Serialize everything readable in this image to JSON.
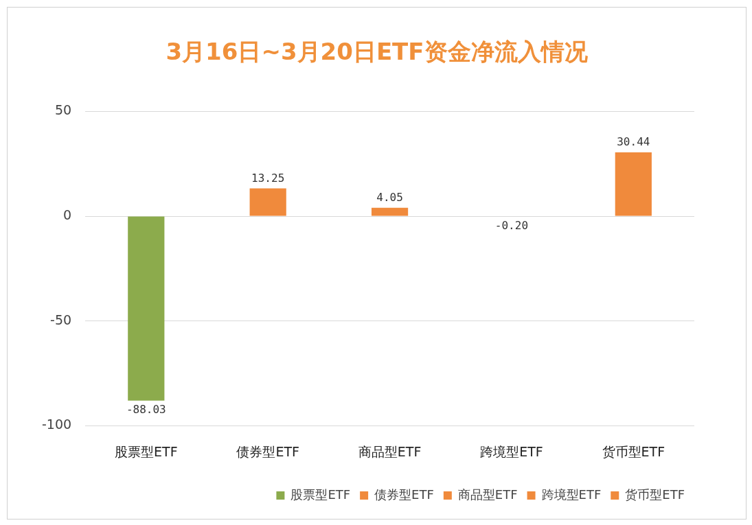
{
  "chart_data": {
    "type": "bar",
    "title": "3月16日~3月20日ETF资金净流入情况",
    "categories": [
      "股票型ETF",
      "债券型ETF",
      "商品型ETF",
      "跨境型ETF",
      "货币型ETF"
    ],
    "series": [
      {
        "name": "股票型ETF",
        "color": "#8cab4c",
        "values": [
          -88.03,
          null,
          null,
          null,
          null
        ],
        "value_labels": [
          "-88.03",
          null,
          null,
          null,
          null
        ]
      },
      {
        "name": "债券型ETF",
        "color": "#f08a3c",
        "values": [
          null,
          13.25,
          null,
          null,
          null
        ],
        "value_labels": [
          null,
          "13.25",
          null,
          null,
          null
        ]
      },
      {
        "name": "商品型ETF",
        "color": "#f08a3c",
        "values": [
          null,
          null,
          4.05,
          null,
          null
        ],
        "value_labels": [
          null,
          null,
          "4.05",
          null,
          null
        ]
      },
      {
        "name": "跨境型ETF",
        "color": "#f08a3c",
        "values": [
          null,
          null,
          null,
          -0.2,
          null
        ],
        "value_labels": [
          null,
          null,
          null,
          "-0.20",
          null
        ]
      },
      {
        "name": "货币型ETF",
        "color": "#f08a3c",
        "values": [
          null,
          null,
          null,
          null,
          30.44
        ],
        "value_labels": [
          null,
          null,
          null,
          null,
          "30.44"
        ]
      }
    ],
    "ylim": [
      -100,
      50
    ],
    "yticks": [
      -100,
      -50,
      0,
      50
    ],
    "grid": "y",
    "legend": "bottom"
  }
}
